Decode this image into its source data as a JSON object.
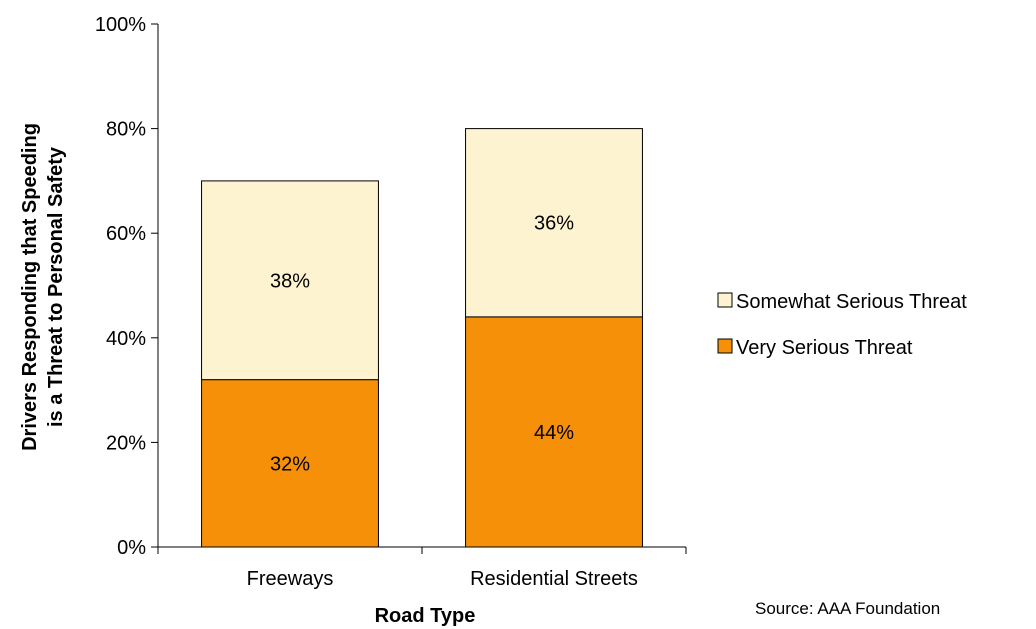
{
  "chart_data": {
    "type": "bar",
    "stacked": true,
    "categories": [
      "Freeways",
      "Residential Streets"
    ],
    "series": [
      {
        "name": "Very Serious Threat",
        "values": [
          32,
          44
        ],
        "labels": [
          "32%",
          "44%"
        ],
        "color": "#F79009"
      },
      {
        "name": "Somewhat Serious Threat",
        "values": [
          38,
          36
        ],
        "labels": [
          "38%",
          "36%"
        ],
        "color": "#FDF3D0"
      }
    ],
    "xlabel": "Road Type",
    "ylabel_lines": [
      "Drivers Responding that Speeding",
      "is a Threat to Personal Safety"
    ],
    "ylim": [
      0,
      100
    ],
    "yticks": [
      0,
      20,
      40,
      60,
      80,
      100
    ],
    "ytick_labels": [
      "0%",
      "20%",
      "40%",
      "60%",
      "80%",
      "100%"
    ],
    "legend": {
      "placement": "right",
      "entries": [
        "Somewhat Serious Threat",
        "Very Serious Threat"
      ]
    },
    "grid": false,
    "source": "Source: AAA Foundation"
  }
}
